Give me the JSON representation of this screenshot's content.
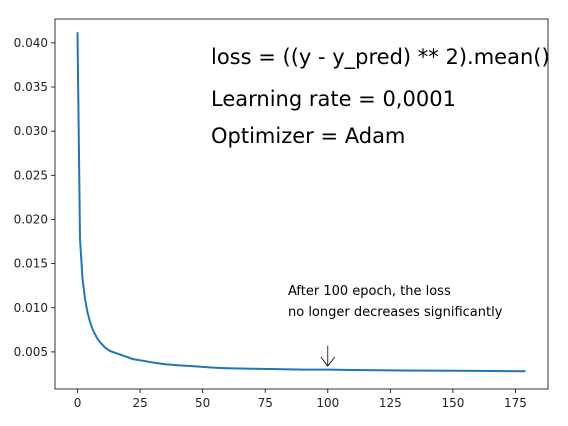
{
  "chart_data": {
    "type": "line",
    "title": "",
    "xlabel": "",
    "ylabel": "",
    "xlim": [
      -9,
      188
    ],
    "ylim": [
      0.0008,
      0.0427
    ],
    "grid": false,
    "legend": "none",
    "x_ticks": [
      0,
      25,
      50,
      75,
      100,
      125,
      150,
      175
    ],
    "x_tick_labels": [
      "0",
      "25",
      "50",
      "75",
      "100",
      "125",
      "150",
      "175"
    ],
    "y_ticks": [
      0.005,
      0.01,
      0.015,
      0.02,
      0.025,
      0.03,
      0.035,
      0.04
    ],
    "y_tick_labels": [
      "0.005",
      "0.010",
      "0.015",
      "0.020",
      "0.025",
      "0.030",
      "0.035",
      "0.040"
    ],
    "series": [
      {
        "color": "#1f77b4",
        "x": [
          0,
          1,
          2,
          3,
          4,
          5,
          6,
          7,
          8,
          9,
          10,
          11,
          12,
          13,
          14,
          15,
          16,
          17,
          18,
          19,
          20,
          22,
          24,
          26,
          28,
          30,
          35,
          40,
          45,
          50,
          55,
          60,
          70,
          80,
          90,
          100,
          110,
          120,
          130,
          140,
          150,
          160,
          170,
          179
        ],
        "y": [
          0.0412,
          0.0178,
          0.0133,
          0.011,
          0.0095,
          0.0084,
          0.0076,
          0.007,
          0.0065,
          0.0061,
          0.0058,
          0.0055,
          0.0053,
          0.0051,
          0.005,
          0.0049,
          0.0048,
          0.0047,
          0.0046,
          0.0045,
          0.0044,
          0.0042,
          0.0041,
          0.004,
          0.0039,
          0.0038,
          0.0036,
          0.0035,
          0.0034,
          0.0033,
          0.0032,
          0.00315,
          0.0031,
          0.00305,
          0.003,
          0.003,
          0.00295,
          0.00293,
          0.0029,
          0.00288,
          0.00287,
          0.00285,
          0.00283,
          0.0028
        ]
      }
    ],
    "annotations": {
      "loss_formula": "loss  = ((y - y_pred) ** 2).mean()",
      "learning_rate": "Learning rate = 0,0001",
      "optimizer": "Optimizer = Adam",
      "note_line1": "After 100 epoch, the loss",
      "note_line2": "no longer decreases significantly",
      "arrow_from": [
        100,
        0.0057
      ],
      "arrow_to": [
        100,
        0.0034
      ]
    }
  }
}
